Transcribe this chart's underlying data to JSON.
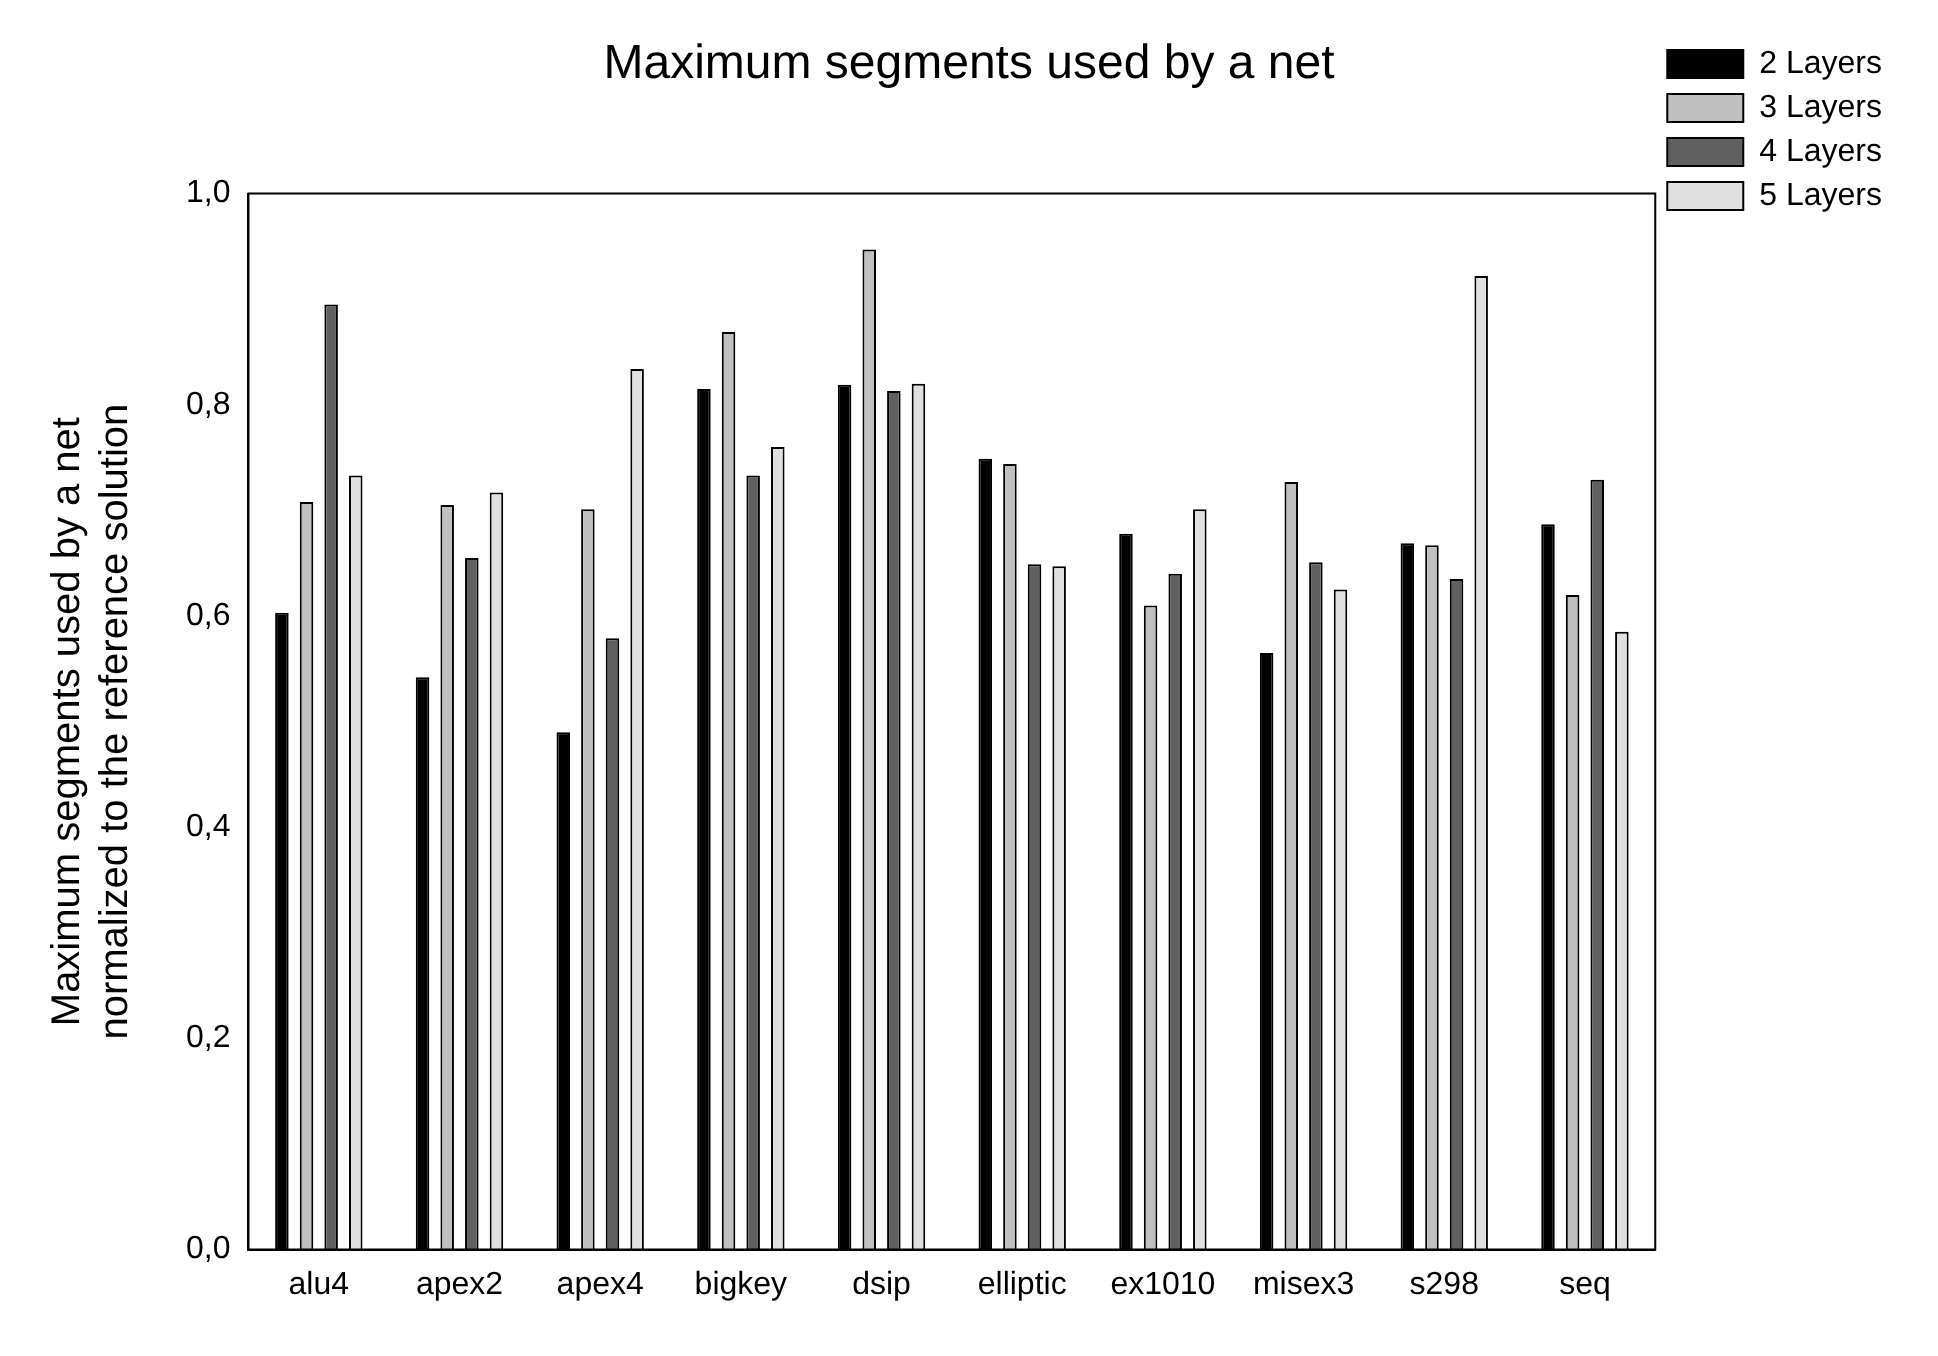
{
  "chart_data": {
    "type": "bar",
    "title": "Maximum segments used by a net",
    "ylabel": "Maximum segments used by a net normalized to the reference solution",
    "categories": [
      "alu4",
      "apex2",
      "apex4",
      "bigkey",
      "dsip",
      "elliptic",
      "ex1010",
      "misex3",
      "s298",
      "seq"
    ],
    "series": [
      {
        "name": "2 Layers",
        "color": "#000000",
        "values": [
          0.603,
          0.542,
          0.49,
          0.815,
          0.819,
          0.749,
          0.678,
          0.565,
          0.669,
          0.687
        ]
      },
      {
        "name": "3 Layers",
        "color": "#c0c0c0",
        "values": [
          0.708,
          0.705,
          0.701,
          0.869,
          0.947,
          0.744,
          0.61,
          0.727,
          0.667,
          0.62
        ]
      },
      {
        "name": "4 Layers",
        "color": "#606060",
        "values": [
          0.895,
          0.655,
          0.579,
          0.733,
          0.813,
          0.649,
          0.64,
          0.651,
          0.635,
          0.729
        ]
      },
      {
        "name": "5 Layers",
        "color": "#e0e0e0",
        "values": [
          0.733,
          0.717,
          0.834,
          0.76,
          0.82,
          0.647,
          0.701,
          0.625,
          0.922,
          0.585
        ]
      }
    ],
    "ylim": [
      0,
      1
    ],
    "yticks": [
      {
        "value": 0,
        "label": "0,0"
      },
      {
        "value": 0.2,
        "label": "0,2"
      },
      {
        "value": 0.4,
        "label": "0,4"
      },
      {
        "value": 0.6,
        "label": "0,6"
      },
      {
        "value": 0.8,
        "label": "0,8"
      },
      {
        "value": 1,
        "label": "1,0"
      }
    ],
    "grid": false,
    "legend": "top right"
  }
}
